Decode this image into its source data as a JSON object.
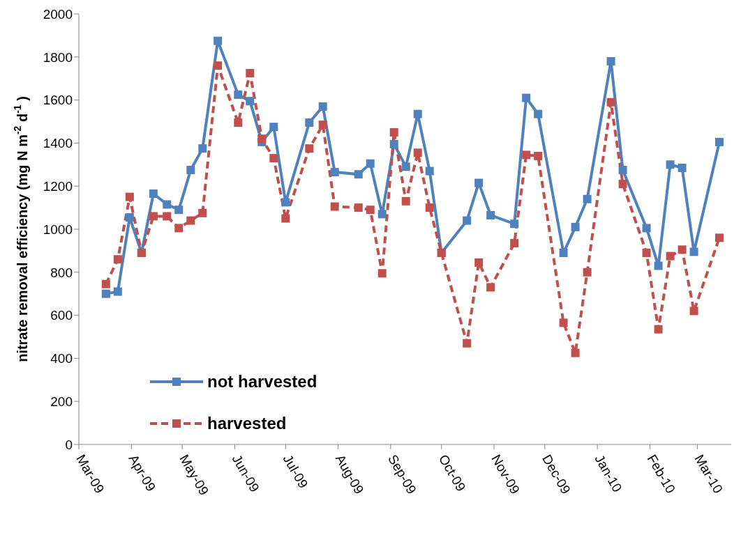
{
  "chart_data": {
    "type": "line",
    "ylabel": "nitrate removal efficiency (mg N m$^{-2}$ d$^{-1}$ )",
    "x": [
      "2009-03-17",
      "2009-03-24",
      "2009-03-31",
      "2009-04-07",
      "2009-04-14",
      "2009-04-22",
      "2009-04-29",
      "2009-05-06",
      "2009-05-13",
      "2009-05-22",
      "2009-06-03",
      "2009-06-10",
      "2009-06-17",
      "2009-06-24",
      "2009-07-01",
      "2009-07-15",
      "2009-07-23",
      "2009-07-30",
      "2009-08-13",
      "2009-08-20",
      "2009-08-27",
      "2009-09-03",
      "2009-09-10",
      "2009-09-17",
      "2009-09-24",
      "2009-10-01",
      "2009-10-16",
      "2009-10-23",
      "2009-10-30",
      "2009-11-13",
      "2009-11-20",
      "2009-11-27",
      "2009-12-12",
      "2009-12-19",
      "2009-12-26",
      "2010-01-09",
      "2010-01-16",
      "2010-01-30",
      "2010-02-06",
      "2010-02-13",
      "2010-02-20",
      "2010-02-27",
      "2010-03-14"
    ],
    "series": [
      {
        "name": "not harvested",
        "color": "#4f81bd",
        "line_style": "solid",
        "values": [
          700,
          710,
          1055,
          890,
          1165,
          1115,
          1090,
          1275,
          1375,
          1875,
          1625,
          1595,
          1405,
          1475,
          1125,
          1495,
          1570,
          1265,
          1255,
          1305,
          1070,
          1395,
          1290,
          1535,
          1270,
          890,
          1040,
          1215,
          1065,
          1025,
          1610,
          1535,
          890,
          1010,
          1140,
          1780,
          1275,
          1005,
          830,
          1300,
          1285,
          895,
          1405
        ]
      },
      {
        "name": "harvested",
        "color": "#c0504d",
        "line_style": "dashed",
        "values": [
          745,
          860,
          1150,
          890,
          1060,
          1060,
          1005,
          1040,
          1075,
          1760,
          1495,
          1725,
          1420,
          1330,
          1050,
          1375,
          1485,
          1105,
          1100,
          1090,
          795,
          1450,
          1130,
          1355,
          1100,
          890,
          470,
          845,
          730,
          935,
          1345,
          1340,
          565,
          425,
          800,
          1590,
          1210,
          890,
          535,
          875,
          905,
          620,
          960
        ]
      }
    ],
    "xlim": [
      "2009-03-01",
      "2010-03-21"
    ],
    "xticks": [
      {
        "value": "2009-03-01",
        "label": "Mar-09"
      },
      {
        "value": "2009-04-01",
        "label": "Apr-09"
      },
      {
        "value": "2009-05-01",
        "label": "May-09"
      },
      {
        "value": "2009-06-01",
        "label": "Jun-09"
      },
      {
        "value": "2009-07-01",
        "label": "Jul-09"
      },
      {
        "value": "2009-08-01",
        "label": "Aug-09"
      },
      {
        "value": "2009-09-01",
        "label": "Sep-09"
      },
      {
        "value": "2009-10-01",
        "label": "Oct-09"
      },
      {
        "value": "2009-11-01",
        "label": "Nov-09"
      },
      {
        "value": "2009-12-01",
        "label": "Dec-09"
      },
      {
        "value": "2010-01-01",
        "label": "Jan-10"
      },
      {
        "value": "2010-02-01",
        "label": "Feb-10"
      },
      {
        "value": "2010-03-01",
        "label": "Mar-10"
      }
    ],
    "ylim": [
      0,
      2000
    ],
    "yticks": [
      0,
      200,
      400,
      600,
      800,
      1000,
      1200,
      1400,
      1600,
      1800,
      2000
    ],
    "grid": false,
    "legend": "bottom left",
    "marker": "square"
  }
}
